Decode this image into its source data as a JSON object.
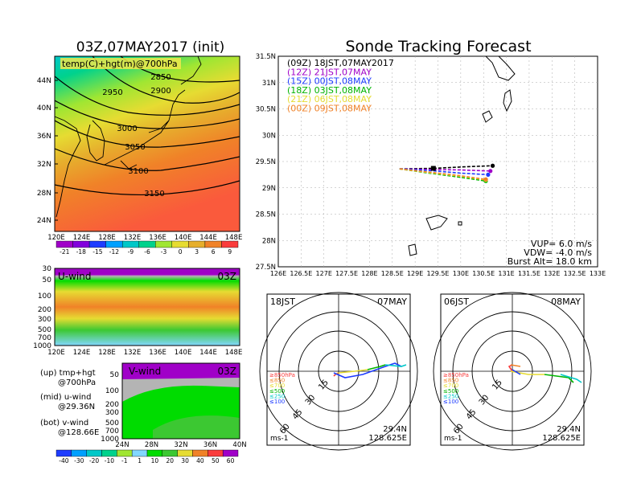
{
  "left_title": "03Z,07MAY2017 (init)",
  "right_title": "Sonde Tracking Forecast",
  "map700": {
    "label": "temp(C)+hgt(m)@700hPa",
    "lat_ticks": [
      "44N",
      "40N",
      "36N",
      "32N",
      "28N",
      "24N"
    ],
    "lon_ticks": [
      "120E",
      "124E",
      "128E",
      "132E",
      "136E",
      "140E",
      "144E",
      "148E"
    ],
    "contour_labels": [
      "2850",
      "2900",
      "2950",
      "3000",
      "3050",
      "3100",
      "3150"
    ],
    "colorbar_ticks": [
      "-21",
      "-18",
      "-15",
      "-12",
      "-9",
      "-6",
      "-3",
      "0",
      "3",
      "6",
      "9"
    ],
    "colorbar_colors": [
      "#a000c8",
      "#8200dc",
      "#1e3cff",
      "#00a0ff",
      "#00c8c8",
      "#00d28c",
      "#a0e632",
      "#e6dc32",
      "#e6af2d",
      "#f08228",
      "#fa3c3c"
    ]
  },
  "uwind": {
    "label": "U-wind",
    "time": "03Z",
    "p_ticks": [
      "30",
      "50",
      "100",
      "200",
      "300",
      "500",
      "700",
      "1000"
    ],
    "lon_ticks": [
      "120E",
      "124E",
      "128E",
      "132E",
      "136E",
      "140E",
      "144E",
      "148E"
    ]
  },
  "vwind": {
    "label": "V-wind",
    "time": "03Z",
    "p_ticks": [
      "50",
      "100",
      "200",
      "300",
      "500",
      "700",
      "1000"
    ],
    "lat_ticks": [
      "24N",
      "28N",
      "32N",
      "36N",
      "40N"
    ]
  },
  "wind_colorbar": {
    "ticks": [
      "-40",
      "-30",
      "-20",
      "-10",
      "-1",
      "1",
      "10",
      "20",
      "30",
      "40",
      "50",
      "60"
    ],
    "colors": [
      "#1e3cff",
      "#00a0ff",
      "#00c8c8",
      "#00d28c",
      "#a0e632",
      "#82d7ff",
      "#00dc00",
      "#3cc832",
      "#e6dc32",
      "#f08228",
      "#fa3c3c",
      "#a000c8"
    ]
  },
  "notes": [
    {
      "line1": "(up) tmp+hgt",
      "line2": "@700hPa"
    },
    {
      "line1": "(mid) u-wind",
      "line2": "@29.36N"
    },
    {
      "line1": "(bot) v-wind",
      "line2": "@128.66E"
    }
  ],
  "track_legend": [
    {
      "text": "(09Z)  18JST,07MAY2017",
      "color": "#000000"
    },
    {
      "text": "(12Z)  21JST,07MAY",
      "color": "#a000c8"
    },
    {
      "text": "(15Z)  00JST,08MAY",
      "color": "#1e3cff"
    },
    {
      "text": "(18Z)  03JST,08MAY",
      "color": "#00b400"
    },
    {
      "text": "(21Z)  06JST,08MAY",
      "color": "#e6dc32"
    },
    {
      "text": "(00Z)  09JST,08MAY",
      "color": "#f08228"
    }
  ],
  "track_params": {
    "vup": "VUP=  6.0  m/s",
    "vdw": "VDW=  -4.0  m/s",
    "burst": "Burst Alt=  18.0  km"
  },
  "track_axes": {
    "lat_ticks": [
      "31.5N",
      "31N",
      "30.5N",
      "30N",
      "29.5N",
      "29N",
      "28.5N",
      "28N",
      "27.5N"
    ],
    "lon_ticks": [
      "126E",
      "126.5E",
      "127E",
      "127.5E",
      "128E",
      "128.5E",
      "129E",
      "129.5E",
      "130E",
      "130.5E",
      "131E",
      "131.5E",
      "132E",
      "132.5E",
      "133E"
    ]
  },
  "chart_data": {
    "type": "line",
    "title": "Sonde Tracking Forecast",
    "xlim": [
      126,
      133
    ],
    "ylim": [
      27.5,
      31.5
    ],
    "series": [
      {
        "name": "(09Z) 18JST,07MAY2017",
        "x": [
          128.66,
          129.4,
          130.1,
          130.7
        ],
        "y": [
          29.36,
          29.37,
          29.4,
          29.42
        ]
      },
      {
        "name": "(12Z) 21JST,07MAY",
        "x": [
          128.66,
          129.3,
          130.0,
          130.65
        ],
        "y": [
          29.36,
          29.35,
          29.34,
          29.32
        ]
      },
      {
        "name": "(15Z) 00JST,08MAY",
        "x": [
          128.66,
          129.3,
          130.0,
          130.6
        ],
        "y": [
          29.36,
          29.33,
          29.28,
          29.25
        ]
      },
      {
        "name": "(18Z) 03JST,08MAY",
        "x": [
          128.66,
          129.3,
          130.0,
          130.55
        ],
        "y": [
          29.36,
          29.28,
          29.2,
          29.13
        ]
      },
      {
        "name": "(21Z) 06JST,08MAY",
        "x": [
          128.66,
          129.3,
          130.0,
          130.55
        ],
        "y": [
          29.36,
          29.29,
          29.22,
          29.15
        ]
      },
      {
        "name": "(00Z) 09JST,08MAY",
        "x": [
          128.66,
          129.3,
          130.0,
          130.55
        ],
        "y": [
          29.36,
          29.3,
          29.23,
          29.16
        ]
      }
    ]
  },
  "hodo1": {
    "left": "18JST",
    "right": "07MAY",
    "lat": "29.4N",
    "lon": "128.625E",
    "unit": "ms-1",
    "rings": [
      "15",
      "30",
      "45",
      "60"
    ]
  },
  "hodo2": {
    "left": "06JST",
    "right": "08MAY",
    "lat": "29.4N",
    "lon": "128.625E",
    "unit": "ms-1",
    "rings": [
      "15",
      "30",
      "45",
      "60"
    ]
  },
  "hodo_levels": [
    {
      "text": "≥850hPa",
      "color": "#fa3c3c"
    },
    {
      "text": "≤850",
      "color": "#f08228"
    },
    {
      "text": "≤700",
      "color": "#e6dc32"
    },
    {
      "text": "≤500",
      "color": "#00b400"
    },
    {
      "text": "≤250",
      "color": "#00c8c8"
    },
    {
      "text": "≤100",
      "color": "#1e3cff"
    }
  ]
}
